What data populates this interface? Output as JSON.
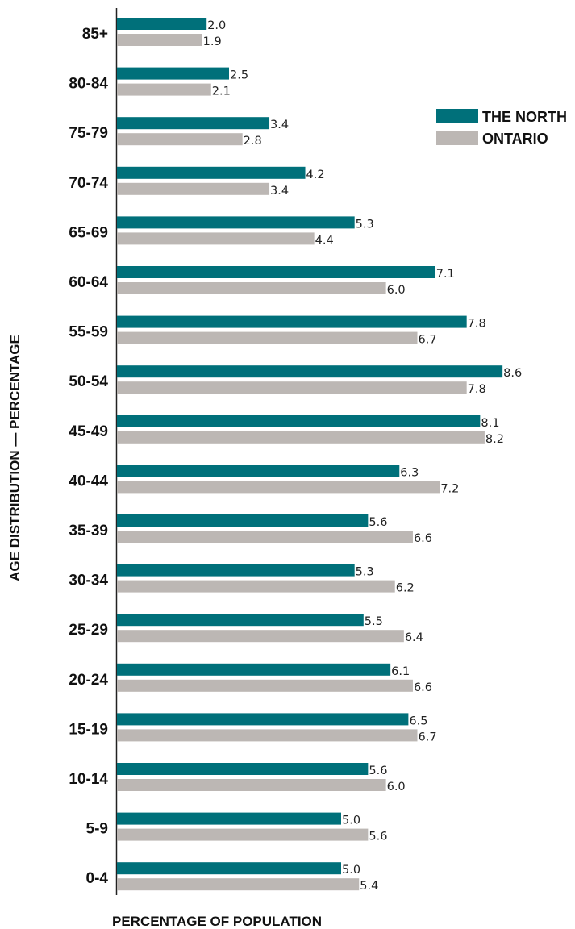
{
  "chart_data": {
    "type": "bar",
    "orientation": "horizontal",
    "ylabel": "AGE DISTRIBUTION — PERCENTAGE",
    "xlabel": "PERCENTAGE OF POPULATION",
    "categories": [
      "85+",
      "80-84",
      "75-79",
      "70-74",
      "65-69",
      "60-64",
      "55-59",
      "50-54",
      "45-49",
      "40-44",
      "35-39",
      "30-34",
      "25-29",
      "20-24",
      "15-19",
      "10-14",
      "5-9",
      "0-4"
    ],
    "series": [
      {
        "name": "THE NORTH",
        "color": "#00707a",
        "values": [
          2.0,
          2.5,
          3.4,
          4.2,
          5.3,
          7.1,
          7.8,
          8.6,
          8.1,
          6.3,
          5.6,
          5.3,
          5.5,
          6.1,
          6.5,
          5.6,
          5.0,
          5.0
        ]
      },
      {
        "name": "ONTARIO",
        "color": "#bcb7b4",
        "values": [
          1.9,
          2.1,
          2.8,
          3.4,
          4.4,
          6.0,
          6.7,
          7.8,
          8.2,
          7.2,
          6.6,
          6.2,
          6.4,
          6.6,
          6.7,
          6.0,
          5.6,
          5.4
        ]
      }
    ],
    "value_labels": {
      "THE NORTH": [
        "2.0",
        "2.5",
        "3.4",
        "4.2",
        "5.3",
        "7.1",
        "7.8",
        "8.6",
        "8.1",
        "6.3",
        "5.6",
        "5.3",
        "5.5",
        "6.1",
        "6.5",
        "5.6",
        "5.0",
        "5.0"
      ],
      "ONTARIO": [
        "1.9",
        "2.1",
        "2.8",
        "3.4",
        "4.4",
        "6.0",
        "6.7",
        "7.8",
        "8.2",
        "7.2",
        "6.6",
        "6.2",
        "6.4",
        "6.6",
        "6.7",
        "6.0",
        "5.6",
        "5.4"
      ]
    },
    "xlim": [
      0,
      10
    ],
    "grid": false,
    "legend_position": "top-right"
  }
}
